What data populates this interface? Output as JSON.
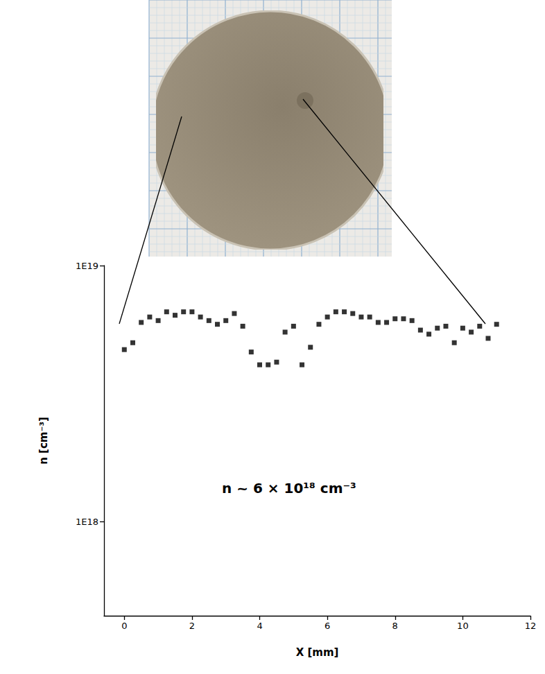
{
  "chart_data": {
    "type": "scatter",
    "xlabel": "X [mm]",
    "ylabel": "n [cm⁻³]",
    "annotation": "n ~ 6 × 10¹⁸ cm⁻³",
    "x": [
      0,
      0.25,
      0.5,
      0.75,
      1,
      1.25,
      1.5,
      1.75,
      2,
      2.25,
      2.5,
      2.75,
      3,
      3.25,
      3.5,
      3.75,
      4,
      4.25,
      4.5,
      4.75,
      5,
      5.25,
      5.5,
      5.75,
      6,
      6.25,
      6.5,
      6.75,
      7,
      7.25,
      7.5,
      7.75,
      8,
      8.25,
      8.5,
      8.75,
      9,
      9.25,
      9.5,
      9.75,
      10,
      10.25,
      10.5,
      10.75,
      11
    ],
    "values": [
      4.7e+18,
      5e+18,
      6e+18,
      6.3e+18,
      6.1e+18,
      6.6e+18,
      6.4e+18,
      6.6e+18,
      6.6e+18,
      6.3e+18,
      6.1e+18,
      5.9e+18,
      6.1e+18,
      6.5e+18,
      5.8e+18,
      4.6e+18,
      4.1e+18,
      4.1e+18,
      4.2e+18,
      5.5e+18,
      5.8e+18,
      4.1e+18,
      4.8e+18,
      5.9e+18,
      6.3e+18,
      6.6e+18,
      6.6e+18,
      6.5e+18,
      6.3e+18,
      6.3e+18,
      6e+18,
      6e+18,
      6.2e+18,
      6.2e+18,
      6.1e+18,
      5.6e+18,
      5.4e+18,
      5.7e+18,
      5.8e+18,
      5e+18,
      5.7e+18,
      5.5e+18,
      5.8e+18,
      5.2e+18,
      5.9e+18
    ],
    "color": "#000000",
    "marker": "square",
    "xlim": [
      -0.6,
      12
    ],
    "xticks": [
      0,
      2,
      4,
      6,
      8,
      10,
      12
    ],
    "ylim": [
      4.3e+17,
      1e+19
    ],
    "yticks": [
      {
        "value": 1e+18,
        "label": "1E18"
      },
      {
        "value": 1e+19,
        "label": "1E19"
      }
    ],
    "log": "y",
    "grid": false
  }
}
